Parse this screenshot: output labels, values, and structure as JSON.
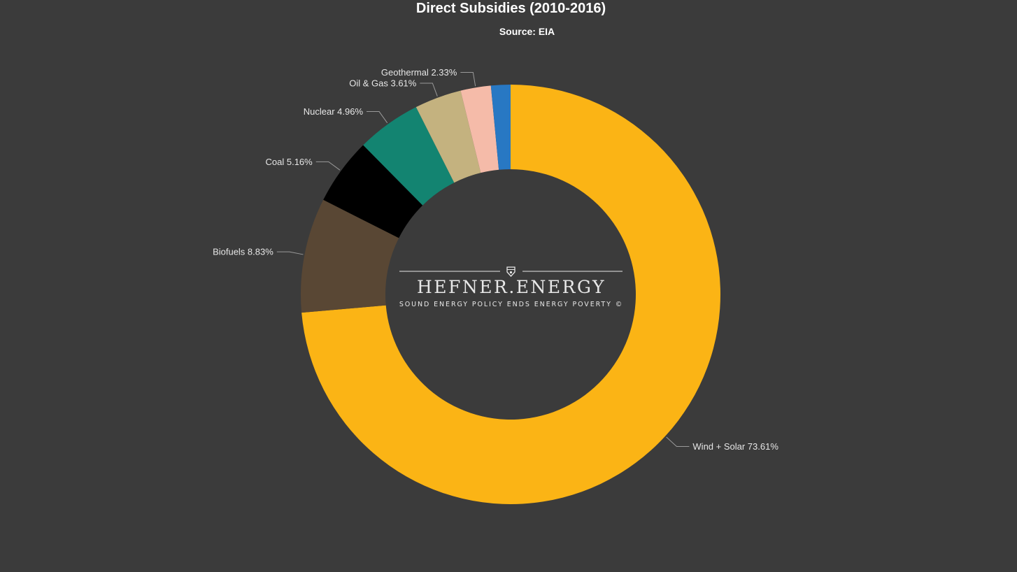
{
  "chart_data": {
    "type": "pie",
    "title": "Direct Subsidies (2010-2016)",
    "subtitle": "Source: EIA",
    "slices": [
      {
        "name": "Wind + Solar",
        "value": 73.61,
        "label": "Wind + Solar 73.61%",
        "color": "#fbb415"
      },
      {
        "name": "Biofuels",
        "value": 8.83,
        "label": "Biofuels 8.83%",
        "color": "#594734"
      },
      {
        "name": "Coal",
        "value": 5.16,
        "label": "Coal 5.16%",
        "color": "#000000"
      },
      {
        "name": "Nuclear",
        "value": 4.96,
        "label": "Nuclear 4.96%",
        "color": "#138471"
      },
      {
        "name": "Oil & Gas",
        "value": 3.61,
        "label": "Oil & Gas 3.61%",
        "color": "#c4b27f"
      },
      {
        "name": "Geothermal",
        "value": 2.33,
        "label": "Geothermal 2.33%",
        "color": "#f5bba9"
      },
      {
        "name": "",
        "value": 1.5,
        "label": "",
        "color": "#2878c3"
      }
    ],
    "watermark": {
      "brand": "HEFNER.ENERGY",
      "tagline": "SOUND ENERGY POLICY ENDS ENERGY POVERTY ©"
    },
    "colors": {
      "background": "#3b3b3b",
      "text": "#ffffff",
      "label_text": "#e6e6e6",
      "connector": "#9a9a9a"
    }
  }
}
